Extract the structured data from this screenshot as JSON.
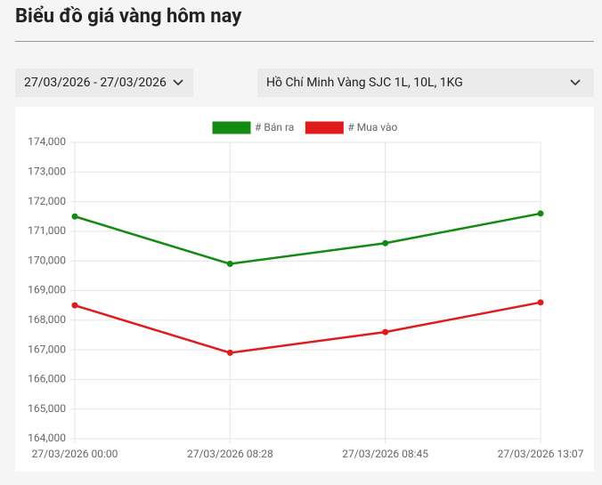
{
  "header": {
    "title": "Biểu đồ giá vàng hôm nay"
  },
  "filters": {
    "date_range": "27/03/2026 - 27/03/2026",
    "product": "Hồ Chí Minh Vàng SJC 1L, 10L, 1KG"
  },
  "chart_data": {
    "type": "line",
    "categories": [
      "27/03/2026 00:00",
      "27/03/2026 08:28",
      "27/03/2026 08:45",
      "27/03/2026 13:07"
    ],
    "series": [
      {
        "name": "# Bán ra",
        "color": "#138a13",
        "values": [
          171500,
          169900,
          170600,
          171600
        ]
      },
      {
        "name": "# Mua vào",
        "color": "#e01b1b",
        "values": [
          168500,
          166900,
          167600,
          168600
        ]
      }
    ],
    "ylim": [
      164000,
      174000
    ],
    "yticks": [
      {
        "value": 164000,
        "label": "164,000"
      },
      {
        "value": 165000,
        "label": "165,000"
      },
      {
        "value": 166000,
        "label": "166,000"
      },
      {
        "value": 167000,
        "label": "167,000"
      },
      {
        "value": 168000,
        "label": "168,000"
      },
      {
        "value": 169000,
        "label": "169,000"
      },
      {
        "value": 170000,
        "label": "170,000"
      },
      {
        "value": 171000,
        "label": "171,000"
      },
      {
        "value": 172000,
        "label": "172,000"
      },
      {
        "value": 173000,
        "label": "173,000"
      },
      {
        "value": 174000,
        "label": "174,000"
      }
    ],
    "grid": true,
    "legend": "top"
  }
}
